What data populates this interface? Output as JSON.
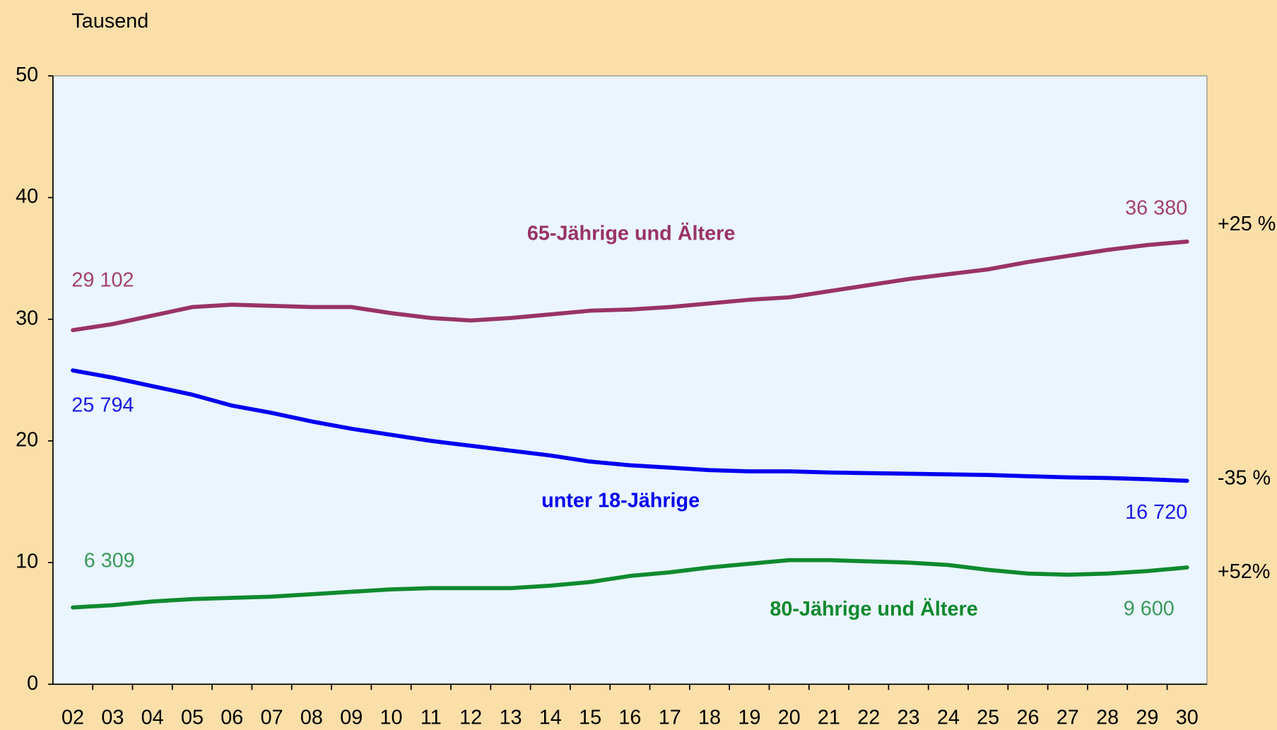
{
  "chart_data": {
    "type": "line",
    "y_axis_label": "Tausend",
    "categories": [
      "02",
      "03",
      "04",
      "05",
      "06",
      "07",
      "08",
      "09",
      "10",
      "11",
      "12",
      "13",
      "14",
      "15",
      "16",
      "17",
      "18",
      "19",
      "20",
      "21",
      "22",
      "23",
      "24",
      "25",
      "26",
      "27",
      "28",
      "29",
      "30"
    ],
    "ylim": [
      0,
      50
    ],
    "yticks": [
      0,
      10,
      20,
      30,
      40,
      50
    ],
    "series": [
      {
        "name": "65-Jährige und Ältere",
        "color": "#993366",
        "label_color": "#a3406f",
        "change": "+25 %",
        "values": [
          29.102,
          29.6,
          30.3,
          31.0,
          31.2,
          31.1,
          31.0,
          31.0,
          30.5,
          30.1,
          29.9,
          30.1,
          30.4,
          30.7,
          30.8,
          31.0,
          31.3,
          31.6,
          31.8,
          32.3,
          32.8,
          33.3,
          33.7,
          34.1,
          34.7,
          35.2,
          35.7,
          36.1,
          36.38
        ],
        "value_labels": [
          "29 102",
          null,
          null,
          null,
          null,
          null,
          null,
          null,
          null,
          null,
          null,
          null,
          null,
          null,
          null,
          null,
          null,
          null,
          null,
          null,
          null,
          null,
          null,
          null,
          null,
          null,
          null,
          null,
          "36 380"
        ]
      },
      {
        "name": "unter 18-Jährige",
        "color": "#0000f0",
        "label_color": "#1a1ae6",
        "change": "-35 %",
        "values": [
          25.794,
          25.2,
          24.5,
          23.8,
          22.9,
          22.3,
          21.6,
          21.0,
          20.5,
          20.0,
          19.6,
          19.2,
          18.8,
          18.3,
          18.0,
          17.8,
          17.6,
          17.5,
          17.5,
          17.4,
          17.35,
          17.3,
          17.25,
          17.2,
          17.1,
          17.0,
          16.95,
          16.85,
          16.72
        ],
        "value_labels": [
          "25 794",
          null,
          null,
          null,
          null,
          null,
          null,
          null,
          null,
          null,
          null,
          null,
          null,
          null,
          null,
          null,
          null,
          null,
          null,
          null,
          null,
          null,
          null,
          null,
          null,
          null,
          null,
          null,
          "16 720"
        ]
      },
      {
        "name": "80-Jährige und Ältere",
        "color": "#0f8a2e",
        "label_color": "#3a9a5c",
        "change": "+52%",
        "values": [
          6.309,
          6.5,
          6.8,
          7.0,
          7.1,
          7.2,
          7.4,
          7.6,
          7.8,
          7.9,
          7.9,
          7.9,
          8.1,
          8.4,
          8.9,
          9.2,
          9.6,
          9.9,
          10.2,
          10.2,
          10.1,
          10.0,
          9.8,
          9.4,
          9.1,
          9.0,
          9.1,
          9.3,
          9.6
        ],
        "value_labels": [
          "6 309",
          null,
          null,
          null,
          null,
          null,
          null,
          null,
          null,
          null,
          null,
          null,
          null,
          null,
          null,
          null,
          null,
          null,
          null,
          null,
          null,
          null,
          null,
          null,
          null,
          null,
          null,
          null,
          "9 600"
        ]
      }
    ]
  }
}
